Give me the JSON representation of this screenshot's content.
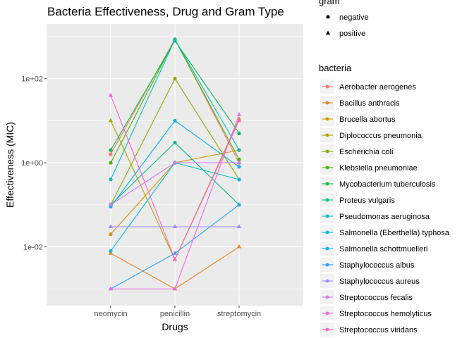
{
  "chart_data": {
    "type": "line",
    "title": "Bacteria Effectiveness, Drug and Gram Type",
    "xlabel": "Drugs",
    "ylabel": "Effectiveness (MIC)",
    "y_scale": "log10",
    "ylim": [
      0.0004,
      2000
    ],
    "grid": true,
    "categories": [
      "neomycin",
      "penicillin",
      "streptomycin"
    ],
    "y_ticks": [
      {
        "value": 0.01,
        "label": "1e-02"
      },
      {
        "value": 1,
        "label": "1e+00"
      },
      {
        "value": 100,
        "label": "1e+02"
      }
    ],
    "legend_gram": {
      "title": "gram",
      "entries": [
        {
          "label": "negative",
          "shape": "circle"
        },
        {
          "label": "positive",
          "shape": "triangle"
        }
      ]
    },
    "legend_bacteria_title": "bacteria",
    "series": [
      {
        "name": "Aerobacter aerogenes",
        "gram": "negative",
        "color": "#F8766D",
        "values": [
          1.6,
          870,
          1
        ]
      },
      {
        "name": "Bacillus anthracis",
        "gram": "positive",
        "color": "#E7851E",
        "values": [
          0.007,
          0.001,
          0.01
        ]
      },
      {
        "name": "Brucella abortus",
        "gram": "negative",
        "color": "#D09400",
        "values": [
          0.02,
          1,
          2
        ]
      },
      {
        "name": "Diplococcus pneumonia",
        "gram": "positive",
        "color": "#B2A100",
        "values": [
          10,
          0.005,
          11
        ]
      },
      {
        "name": "Escherichia coli",
        "gram": "negative",
        "color": "#89AC00",
        "values": [
          0.1,
          100,
          0.4
        ]
      },
      {
        "name": "Klebsiella pneumoniae",
        "gram": "negative",
        "color": "#45B500",
        "values": [
          1,
          850,
          1.2
        ]
      },
      {
        "name": "Mycobacterium tuberculosis",
        "gram": "negative",
        "color": "#00BC51",
        "values": [
          2,
          800,
          5
        ]
      },
      {
        "name": "Proteus vulgaris",
        "gram": "negative",
        "color": "#00C087",
        "values": [
          0.1,
          3,
          0.1
        ]
      },
      {
        "name": "Pseudomonas aeruginosa",
        "gram": "negative",
        "color": "#00C0B2",
        "values": [
          0.4,
          850,
          2
        ]
      },
      {
        "name": "Salmonella (Eberthella) typhosa",
        "gram": "negative",
        "color": "#00BCD6",
        "values": [
          0.008,
          1,
          0.4
        ]
      },
      {
        "name": "Salmonella schottmuelleri",
        "gram": "negative",
        "color": "#00B3F2",
        "values": [
          0.09,
          10,
          0.8
        ]
      },
      {
        "name": "Staphylococcus albus",
        "gram": "positive",
        "color": "#29A3FF",
        "values": [
          0.001,
          0.007,
          0.1
        ]
      },
      {
        "name": "Staphylococcus aureus",
        "gram": "positive",
        "color": "#9C8DFF",
        "values": [
          0.03,
          0.03,
          0.03
        ]
      },
      {
        "name": "Streptococcus fecalis",
        "gram": "positive",
        "color": "#D277FF",
        "values": [
          0.1,
          1,
          1
        ]
      },
      {
        "name": "Streptococcus hemolyticus",
        "gram": "positive",
        "color": "#F166E8",
        "values": [
          0.001,
          0.001,
          14
        ]
      },
      {
        "name": "Streptococcus viridans",
        "gram": "positive",
        "color": "#FF61C7",
        "values": [
          40,
          0.005,
          10
        ]
      }
    ]
  }
}
